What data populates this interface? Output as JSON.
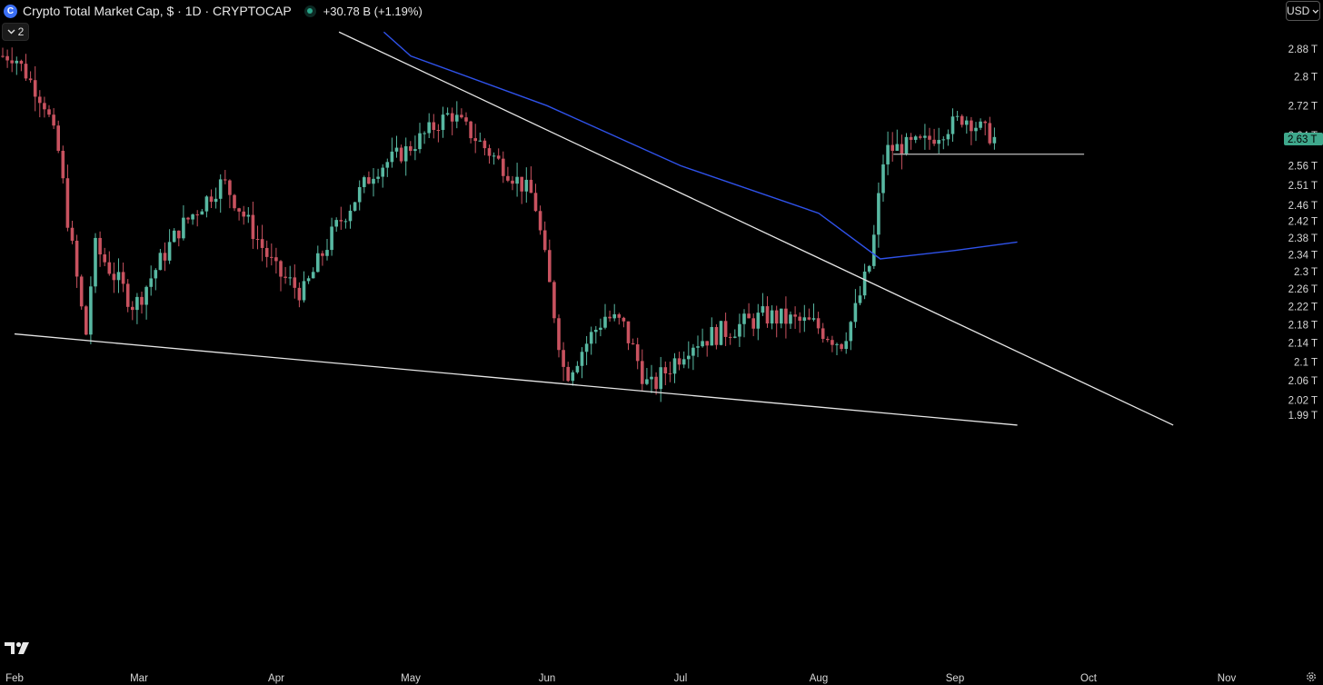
{
  "header": {
    "title": "Crypto Total Market Cap, $ · 1D · CRYPTOCAP",
    "change": "+30.78 B (+1.19%)",
    "collapse_count": "2",
    "currency": "USD"
  },
  "colors": {
    "background": "#000000",
    "up": "#58b8a2",
    "down": "#c8525f",
    "ma_line": "#2f52ea",
    "trend_line": "#e6e6e6",
    "price_label_bg": "#3fa88c"
  },
  "icons": [
    "crypto-icon",
    "market-status-icon",
    "chevron-down-icon",
    "tradingview-logo-icon",
    "gear-icon"
  ],
  "chart_data": {
    "type": "candlestick",
    "x_axis": {
      "range": [
        "Feb",
        "Nov"
      ],
      "ticks": [
        "Feb",
        "Mar",
        "Apr",
        "May",
        "Jun",
        "Jul",
        "Aug",
        "Sep",
        "Oct",
        "Nov"
      ]
    },
    "y_axis": {
      "scale": "log",
      "unit": "T",
      "range": [
        1.97,
        2.93
      ],
      "ticks": [
        "2.88 T",
        "2.8 T",
        "2.72 T",
        "2.64 T",
        "2.56 T",
        "2.51 T",
        "2.46 T",
        "2.42 T",
        "2.38 T",
        "2.34 T",
        "2.3 T",
        "2.26 T",
        "2.22 T",
        "2.18 T",
        "2.14 T",
        "2.1 T",
        "2.06 T",
        "2.02 T",
        "1.99 T"
      ]
    },
    "grid": false,
    "current_price_label": "2.63 T",
    "current_price": 2.63,
    "ohlc_points": [
      {
        "x": "Feb",
        "y": 2.86
      },
      {
        "x": "Feb 8",
        "y": 2.72
      },
      {
        "x": "Feb 11",
        "y": 2.59
      },
      {
        "x": "Feb 13",
        "y": 2.42
      },
      {
        "x": "Feb 17",
        "y": 2.15
      },
      {
        "x": "Feb 19",
        "y": 2.36
      },
      {
        "x": "Feb 28",
        "y": 2.22
      },
      {
        "x": "Mar 10",
        "y": 2.4
      },
      {
        "x": "Mar 20",
        "y": 2.52
      },
      {
        "x": "Apr 1",
        "y": 2.3
      },
      {
        "x": "Apr 7",
        "y": 2.25
      },
      {
        "x": "Apr 14",
        "y": 2.4
      },
      {
        "x": "Apr 23",
        "y": 2.55
      },
      {
        "x": "Apr 30",
        "y": 2.6
      },
      {
        "x": "May 10",
        "y": 2.7
      },
      {
        "x": "May 21",
        "y": 2.57
      },
      {
        "x": "May 29",
        "y": 2.48
      },
      {
        "x": "Jun 1",
        "y": 2.3
      },
      {
        "x": "Jun 5",
        "y": 2.07
      },
      {
        "x": "Jun 14",
        "y": 2.2
      },
      {
        "x": "Jun 18",
        "y": 2.18
      },
      {
        "x": "Jun 24",
        "y": 2.04
      },
      {
        "x": "Jul 3",
        "y": 2.14
      },
      {
        "x": "Jul 12",
        "y": 2.17
      },
      {
        "x": "Jul 20",
        "y": 2.2
      },
      {
        "x": "Jul 31",
        "y": 2.18
      },
      {
        "x": "Aug 6",
        "y": 2.14
      },
      {
        "x": "Aug 9",
        "y": 2.2
      },
      {
        "x": "Aug 13",
        "y": 2.33
      },
      {
        "x": "Aug 16",
        "y": 2.6
      },
      {
        "x": "Aug 25",
        "y": 2.62
      },
      {
        "x": "Sep 3",
        "y": 2.69
      },
      {
        "x": "Sep 10",
        "y": 2.63
      }
    ],
    "moving_average": [
      {
        "x": "Apr 25",
        "y": 2.93
      },
      {
        "x": "May",
        "y": 2.86
      },
      {
        "x": "Jun",
        "y": 2.72
      },
      {
        "x": "Jul",
        "y": 2.56
      },
      {
        "x": "Aug",
        "y": 2.44
      },
      {
        "x": "Aug 15",
        "y": 2.33
      },
      {
        "x": "Sep",
        "y": 2.35
      },
      {
        "x": "Sep 15",
        "y": 2.37
      }
    ],
    "trend_lines": [
      {
        "name": "resistance",
        "from": {
          "x": "Apr 15",
          "y": 2.93
        },
        "to": {
          "x": "Oct 20",
          "y": 1.97
        }
      },
      {
        "name": "support",
        "from": {
          "x": "Feb",
          "y": 2.16
        },
        "to": {
          "x": "Sep 15",
          "y": 1.97
        }
      },
      {
        "name": "horizontal",
        "from": {
          "x": "Aug 18",
          "y": 2.59
        },
        "to": {
          "x": "Sep 30",
          "y": 2.59
        }
      }
    ]
  }
}
